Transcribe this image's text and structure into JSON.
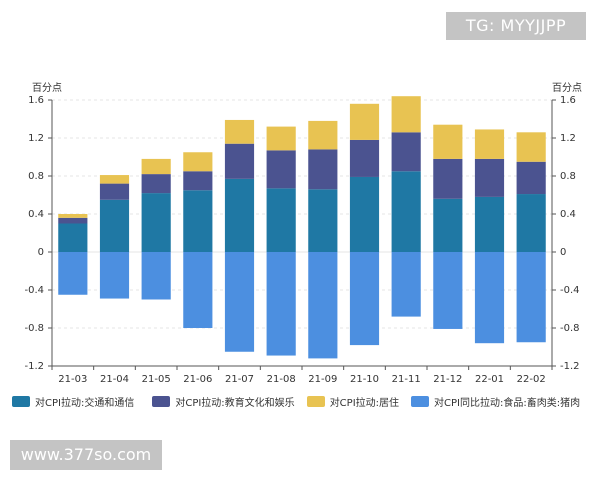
{
  "watermarks": {
    "top": "TG: MYYJJPP",
    "bottom": "www.377so.com"
  },
  "chart_data": {
    "type": "bar",
    "stacked": true,
    "title": "",
    "ylabel_left": "百分点",
    "ylabel_right": "百分点",
    "xlabel": "",
    "ylim": [
      -1.2,
      1.6
    ],
    "yticks": [
      1.6,
      1.2,
      0.8,
      0.4,
      0,
      -0.4,
      -0.8,
      -1.2
    ],
    "ytick_labels": [
      "1.6",
      "1.2",
      "0.8",
      "0.4",
      "0",
      "-0.4",
      "-0.8",
      "-1.2"
    ],
    "categories": [
      "21-03",
      "21-04",
      "21-05",
      "21-06",
      "21-07",
      "21-08",
      "21-09",
      "21-10",
      "21-11",
      "21-12",
      "22-01",
      "22-02"
    ],
    "series": [
      {
        "name": "对CPI拉动:交通和通信",
        "color": "#1f78a4",
        "values": [
          0.3,
          0.55,
          0.62,
          0.65,
          0.77,
          0.67,
          0.66,
          0.79,
          0.85,
          0.56,
          0.58,
          0.61
        ]
      },
      {
        "name": "对CPI拉动:教育文化和娱乐",
        "color": "#4b5390",
        "values": [
          0.06,
          0.17,
          0.2,
          0.2,
          0.37,
          0.4,
          0.42,
          0.39,
          0.41,
          0.42,
          0.4,
          0.34
        ]
      },
      {
        "name": "对CPI拉动:居住",
        "color": "#e8c352",
        "values": [
          0.04,
          0.09,
          0.16,
          0.2,
          0.25,
          0.25,
          0.3,
          0.38,
          0.38,
          0.36,
          0.31,
          0.31
        ]
      },
      {
        "name": "对CPI同比拉动:食品:畜肉类:猪肉",
        "color": "#4c8fe0",
        "values": [
          -0.45,
          -0.49,
          -0.5,
          -0.8,
          -1.05,
          -1.09,
          -1.12,
          -0.98,
          -0.68,
          -0.81,
          -0.96,
          -0.95
        ]
      }
    ],
    "legend_position": "bottom"
  }
}
